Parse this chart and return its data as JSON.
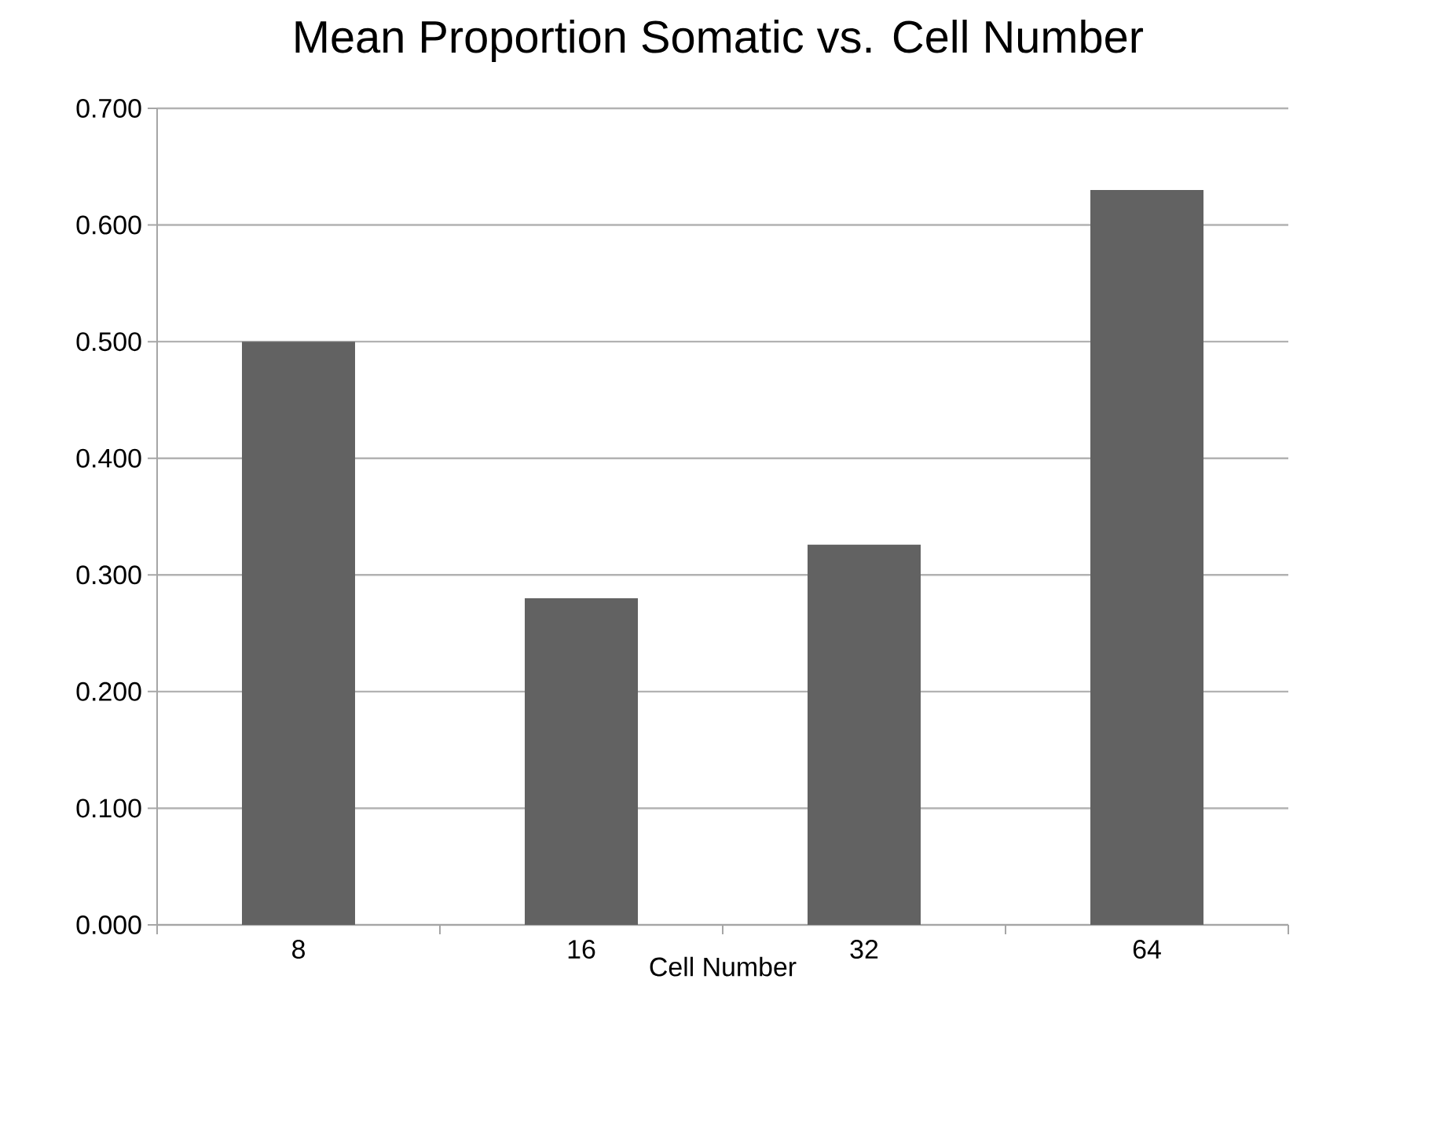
{
  "chart_data": {
    "type": "bar",
    "title": "Mean Proportion Somatic vs. Cell Number",
    "xlabel": "Cell Number",
    "categories": [
      "8",
      "16",
      "32",
      "64"
    ],
    "values": [
      0.5,
      0.28,
      0.326,
      0.63
    ],
    "color": "#626262",
    "ylim": [
      0,
      0.7
    ],
    "yticks": [
      {
        "value": 0,
        "label": "0.000"
      },
      {
        "value": 0.1,
        "label": "0.100"
      },
      {
        "value": 0.2,
        "label": "0.200"
      },
      {
        "value": 0.3,
        "label": "0.300"
      },
      {
        "value": 0.4,
        "label": "0.400"
      },
      {
        "value": 0.5,
        "label": "0.500"
      },
      {
        "value": 0.6,
        "label": "0.600"
      },
      {
        "value": 0.7,
        "label": "0.700"
      }
    ],
    "grid": "y"
  }
}
